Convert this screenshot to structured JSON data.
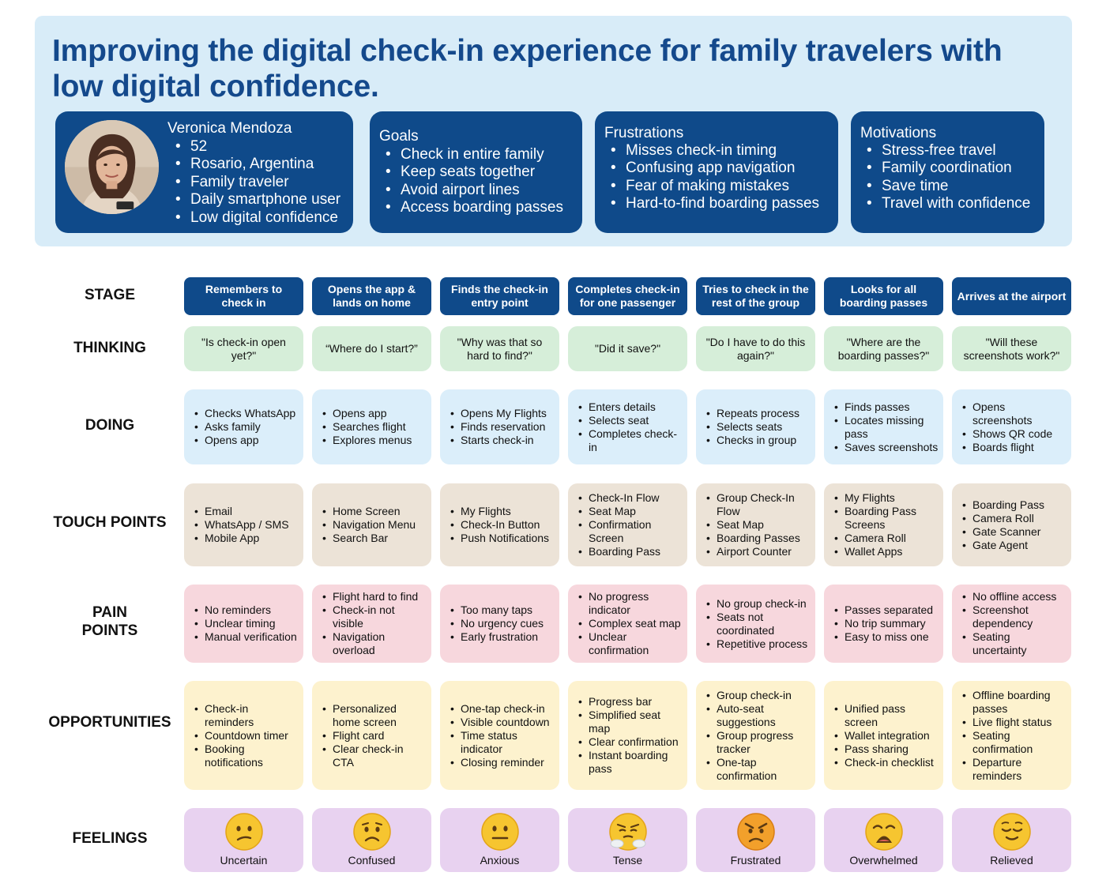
{
  "title": "Improving the digital check-in experience for family travelers with low digital confidence.",
  "persona": {
    "name": "Veronica Mendoza",
    "details": [
      "52",
      "Rosario, Argentina",
      "Family traveler",
      "Daily smartphone user",
      "Low digital confidence"
    ]
  },
  "cards": {
    "goals": {
      "title": "Goals",
      "items": [
        "Check in entire family",
        "Keep seats together",
        "Avoid airport lines",
        "Access boarding passes"
      ]
    },
    "frustrations": {
      "title": "Frustrations",
      "items": [
        "Misses check-in timing",
        "Confusing app navigation",
        "Fear of making mistakes",
        "Hard-to-find boarding passes"
      ]
    },
    "motivations": {
      "title": "Motivations",
      "items": [
        "Stress-free travel",
        "Family coordination",
        "Save time",
        "Travel with confidence"
      ]
    }
  },
  "row_labels": {
    "stage": "STAGE",
    "thinking": "THINKING",
    "doing": "DOING",
    "touch": "TOUCH POINTS",
    "pain_1": "PAIN",
    "pain_2": "POINTS",
    "opportunities": "OPPORTUNITIES",
    "feelings": "FEELINGS"
  },
  "stages": [
    {
      "stage": "Remembers to check in",
      "thinking": "\"Is check-in open yet?\"",
      "doing": [
        "Checks WhatsApp",
        "Asks family",
        "Opens app"
      ],
      "touch": [
        "Email",
        "WhatsApp / SMS",
        "Mobile App"
      ],
      "pain": [
        "No reminders",
        "Unclear timing",
        "Manual verification"
      ],
      "opp": [
        "Check-in reminders",
        "Countdown timer",
        "Booking notifications"
      ],
      "feeling": "Uncertain"
    },
    {
      "stage": "Opens the app & lands on home",
      "thinking": "“Where do I start?”",
      "doing": [
        "Opens app",
        "Searches flight",
        "Explores menus"
      ],
      "touch": [
        "Home Screen",
        "Navigation Menu",
        "Search Bar"
      ],
      "pain": [
        "Flight hard to find",
        "Check-in not visible",
        "Navigation overload"
      ],
      "opp": [
        "Personalized home screen",
        "Flight card",
        "Clear check-in CTA"
      ],
      "feeling": "Confused"
    },
    {
      "stage": "Finds the check-in entry point",
      "thinking": "\"Why was that so hard to find?\"",
      "doing": [
        "Opens My Flights",
        "Finds reservation",
        "Starts check-in"
      ],
      "touch": [
        "My Flights",
        "Check-In Button",
        "Push Notifications"
      ],
      "pain": [
        "Too many taps",
        "No urgency cues",
        "Early frustration"
      ],
      "opp": [
        "One-tap check-in",
        "Visible countdown",
        "Time status indicator",
        "Closing reminder"
      ],
      "feeling": "Anxious"
    },
    {
      "stage": "Completes check-in for one passenger",
      "thinking": "\"Did it save?\"",
      "doing": [
        "Enters details",
        "Selects seat",
        "Completes check-in"
      ],
      "touch": [
        "Check-In Flow",
        "Seat Map",
        "Confirmation Screen",
        "Boarding Pass"
      ],
      "pain": [
        "No progress indicator",
        "Complex seat map",
        "Unclear confirmation"
      ],
      "opp": [
        "Progress bar",
        "Simplified seat map",
        "Clear confirmation",
        "Instant boarding pass"
      ],
      "feeling": "Tense"
    },
    {
      "stage": "Tries to check in the rest of the group",
      "thinking": "\"Do I have to do this again?\"",
      "doing": [
        "Repeats process",
        "Selects seats",
        "Checks in group"
      ],
      "touch": [
        "Group Check-In Flow",
        "Seat Map",
        "Boarding Passes",
        "Airport Counter"
      ],
      "pain": [
        "No group check-in",
        "Seats not coordinated",
        "Repetitive process"
      ],
      "opp": [
        "Group check-in",
        "Auto-seat suggestions",
        "Group progress tracker",
        "One-tap confirmation"
      ],
      "feeling": "Frustrated"
    },
    {
      "stage": "Looks for all boarding passes",
      "thinking": "\"Where are the boarding passes?\"",
      "doing": [
        "Finds passes",
        "Locates missing pass",
        "Saves screenshots"
      ],
      "touch": [
        "My Flights",
        "Boarding Pass Screens",
        "Camera Roll",
        "Wallet Apps"
      ],
      "pain": [
        "Passes separated",
        "No trip summary",
        "Easy to miss one"
      ],
      "opp": [
        "Unified pass screen",
        "Wallet integration",
        "Pass sharing",
        "Check-in checklist"
      ],
      "feeling": "Overwhelmed"
    },
    {
      "stage": "Arrives at the airport",
      "thinking": "\"Will these screenshots work?\"",
      "doing": [
        "Opens screenshots",
        "Shows QR code",
        "Boards flight"
      ],
      "touch": [
        "Boarding Pass",
        "Camera Roll",
        "Gate Scanner",
        "Gate Agent"
      ],
      "pain": [
        "No offline access",
        "Screenshot dependency",
        "Seating uncertainty"
      ],
      "opp": [
        "Offline boarding passes",
        "Live flight status",
        "Seating confirmation",
        "Departure reminders"
      ],
      "feeling": "Relieved"
    }
  ],
  "emoji_icons": [
    "confused-face-icon",
    "worried-face-icon",
    "neutral-face-icon",
    "steaming-face-icon",
    "angry-face-icon",
    "weary-face-icon",
    "relieved-face-icon"
  ]
}
